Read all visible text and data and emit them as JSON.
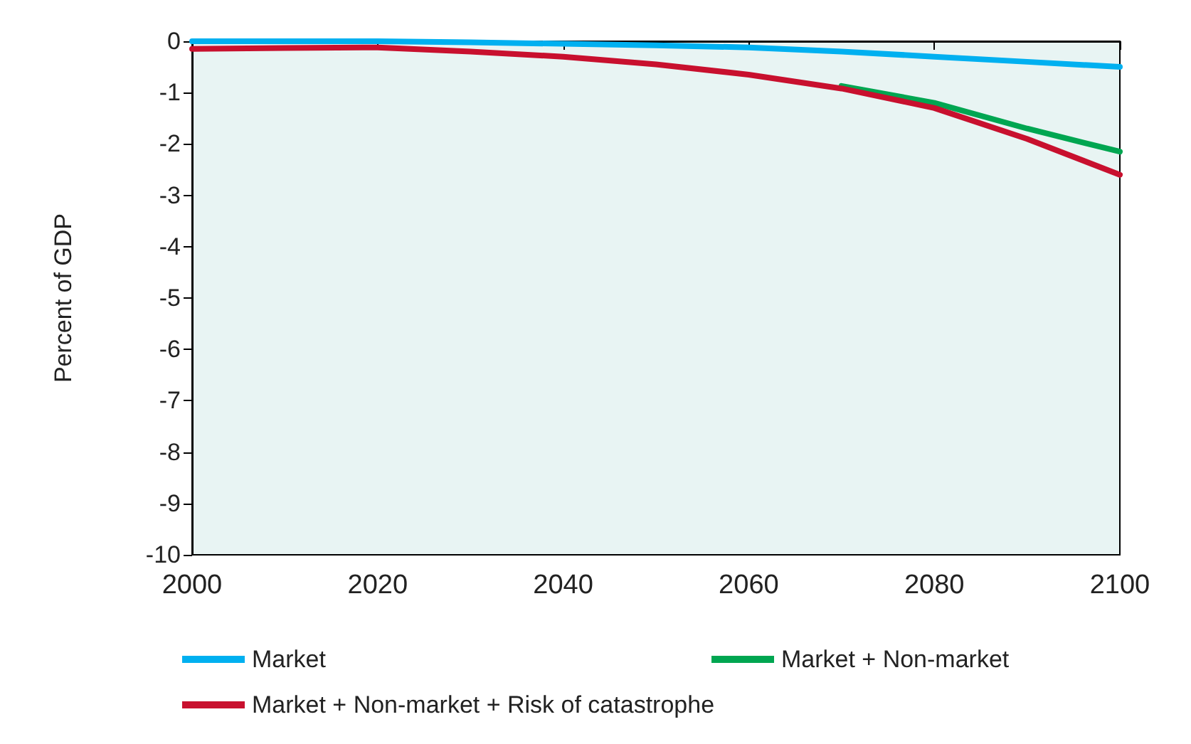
{
  "chart_data": {
    "type": "line",
    "ylabel": "Percent of GDP",
    "x": [
      2000,
      2010,
      2020,
      2030,
      2040,
      2050,
      2060,
      2070,
      2080,
      2090,
      2100
    ],
    "series": [
      {
        "name": "Market",
        "color": "#00b0f0",
        "values": [
          0,
          0,
          0,
          -0.02,
          -0.05,
          -0.08,
          -0.12,
          -0.2,
          -0.3,
          -0.4,
          -0.5
        ]
      },
      {
        "name": "Market + Non-market",
        "color": "#00a651",
        "values": [
          null,
          null,
          null,
          null,
          null,
          null,
          null,
          -0.87,
          -1.2,
          -1.7,
          -2.15
        ]
      },
      {
        "name": "Market + Non-market + Risk of catastrophe",
        "color": "#c8102e",
        "values": [
          -0.15,
          -0.13,
          -0.12,
          -0.2,
          -0.3,
          -0.45,
          -0.65,
          -0.92,
          -1.3,
          -1.9,
          -2.6
        ]
      }
    ],
    "xlim": [
      2000,
      2100
    ],
    "xticks": [
      2000,
      2020,
      2040,
      2060,
      2080,
      2100
    ],
    "ylim": [
      -10,
      0
    ],
    "yticks": [
      -10,
      -9,
      -8,
      -7,
      -6,
      -5,
      -4,
      -3,
      -2,
      -1,
      0
    ],
    "grid": false,
    "legend": "bottom",
    "marker": "none",
    "line_style": "solid"
  }
}
